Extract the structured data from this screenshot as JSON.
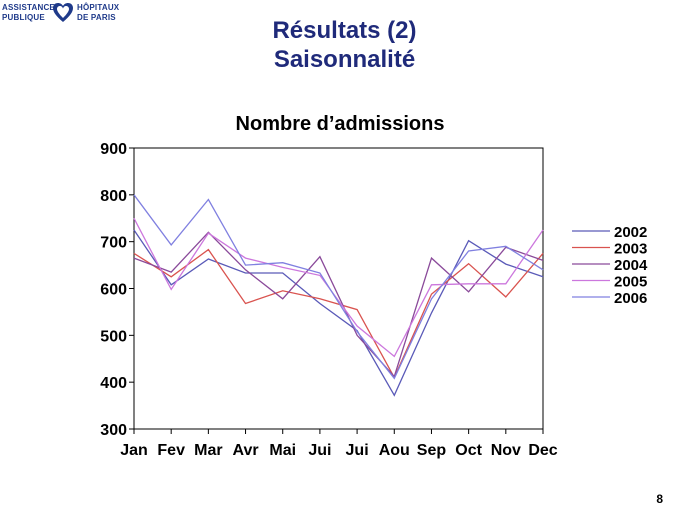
{
  "logo": {
    "line1_left": "ASSISTANCE",
    "line1_right": "HÔPITAUX",
    "line2_left": "PUBLIQUE",
    "line2_right": "DE PARIS"
  },
  "slide": {
    "title_line1": "Résultats (2)",
    "title_line2": "Saisonnalité",
    "page_number": "8"
  },
  "chart_data": {
    "type": "line",
    "title": "Nombre d’admissions",
    "categories": [
      "Jan",
      "Fev",
      "Mar",
      "Avr",
      "Mai",
      "Jui",
      "Jui",
      "Aou",
      "Sep",
      "Oct",
      "Nov",
      "Dec"
    ],
    "ylim": [
      300,
      900
    ],
    "yticks": [
      300,
      400,
      500,
      600,
      700,
      800,
      900
    ],
    "grid": false,
    "legend_position": "right",
    "series": [
      {
        "name": "2002",
        "color": "#5a5ab8",
        "values": [
          725,
          608,
          663,
          633,
          633,
          568,
          510,
          372,
          548,
          702,
          652,
          625
        ]
      },
      {
        "name": "2003",
        "color": "#d9534f",
        "values": [
          675,
          625,
          683,
          568,
          595,
          578,
          555,
          410,
          588,
          653,
          582,
          675
        ]
      },
      {
        "name": "2004",
        "color": "#8a4a9a",
        "values": [
          665,
          635,
          720,
          640,
          578,
          668,
          500,
          412,
          665,
          593,
          688,
          660
        ]
      },
      {
        "name": "2005",
        "color": "#cc77dd",
        "values": [
          750,
          598,
          718,
          665,
          645,
          628,
          520,
          455,
          608,
          610,
          610,
          725
        ]
      },
      {
        "name": "2006",
        "color": "#8080e0",
        "values": [
          800,
          693,
          790,
          650,
          655,
          633,
          508,
          408,
          578,
          680,
          690,
          640
        ]
      }
    ]
  }
}
